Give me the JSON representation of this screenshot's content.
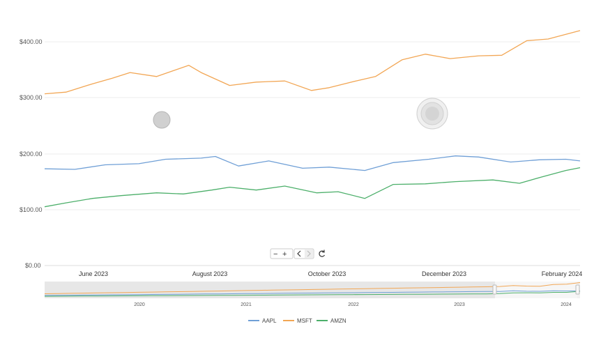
{
  "chart_data": {
    "type": "line",
    "series": [
      {
        "name": "AAPL",
        "color": "#6f9fd6",
        "x": [
          "2023-04-28",
          "2023-05-15",
          "2023-06-01",
          "2023-06-20",
          "2023-07-05",
          "2023-07-25",
          "2023-08-02",
          "2023-08-15",
          "2023-09-01",
          "2023-09-20",
          "2023-10-05",
          "2023-10-25",
          "2023-11-10",
          "2023-11-30",
          "2023-12-15",
          "2023-12-28",
          "2024-01-15",
          "2024-01-31",
          "2024-02-15",
          "2024-02-23"
        ],
        "y": [
          173,
          172,
          180,
          182,
          190,
          192,
          195,
          178,
          187,
          174,
          176,
          170,
          184,
          190,
          196,
          194,
          185,
          189,
          190,
          187
        ]
      },
      {
        "name": "MSFT",
        "color": "#f2a654",
        "x": [
          "2023-04-28",
          "2023-05-10",
          "2023-05-25",
          "2023-06-05",
          "2023-06-15",
          "2023-06-30",
          "2023-07-18",
          "2023-07-25",
          "2023-08-10",
          "2023-08-25",
          "2023-09-10",
          "2023-09-25",
          "2023-10-05",
          "2023-10-20",
          "2023-10-31",
          "2023-11-15",
          "2023-11-28",
          "2023-12-12",
          "2023-12-28",
          "2024-01-10",
          "2024-01-24",
          "2024-02-05",
          "2024-02-23"
        ],
        "y": [
          307,
          310,
          325,
          335,
          345,
          338,
          358,
          345,
          322,
          328,
          330,
          313,
          318,
          330,
          338,
          368,
          378,
          370,
          375,
          376,
          402,
          405,
          420
        ]
      },
      {
        "name": "AMZN",
        "color": "#4caf6a",
        "x": [
          "2023-04-28",
          "2023-05-10",
          "2023-05-25",
          "2023-06-10",
          "2023-06-30",
          "2023-07-15",
          "2023-07-31",
          "2023-08-10",
          "2023-08-25",
          "2023-09-10",
          "2023-09-28",
          "2023-10-10",
          "2023-10-25",
          "2023-11-10",
          "2023-11-28",
          "2023-12-15",
          "2024-01-05",
          "2024-01-20",
          "2024-02-01",
          "2024-02-15",
          "2024-02-23"
        ],
        "y": [
          105,
          112,
          120,
          125,
          130,
          128,
          135,
          140,
          135,
          142,
          130,
          132,
          120,
          145,
          146,
          150,
          153,
          147,
          158,
          170,
          175
        ]
      }
    ],
    "yticks": [
      "$0.00",
      "$100.00",
      "$200.00",
      "$300.00",
      "$400.00"
    ],
    "ylim": [
      0,
      400
    ],
    "xticks": [
      "June 2023",
      "August 2023",
      "October 2023",
      "December 2023",
      "February 2024"
    ],
    "navigator_ticks": [
      "2020",
      "2021",
      "2022",
      "2023",
      "2024"
    ],
    "grid": true,
    "legend_placement": "bottom-center"
  }
}
